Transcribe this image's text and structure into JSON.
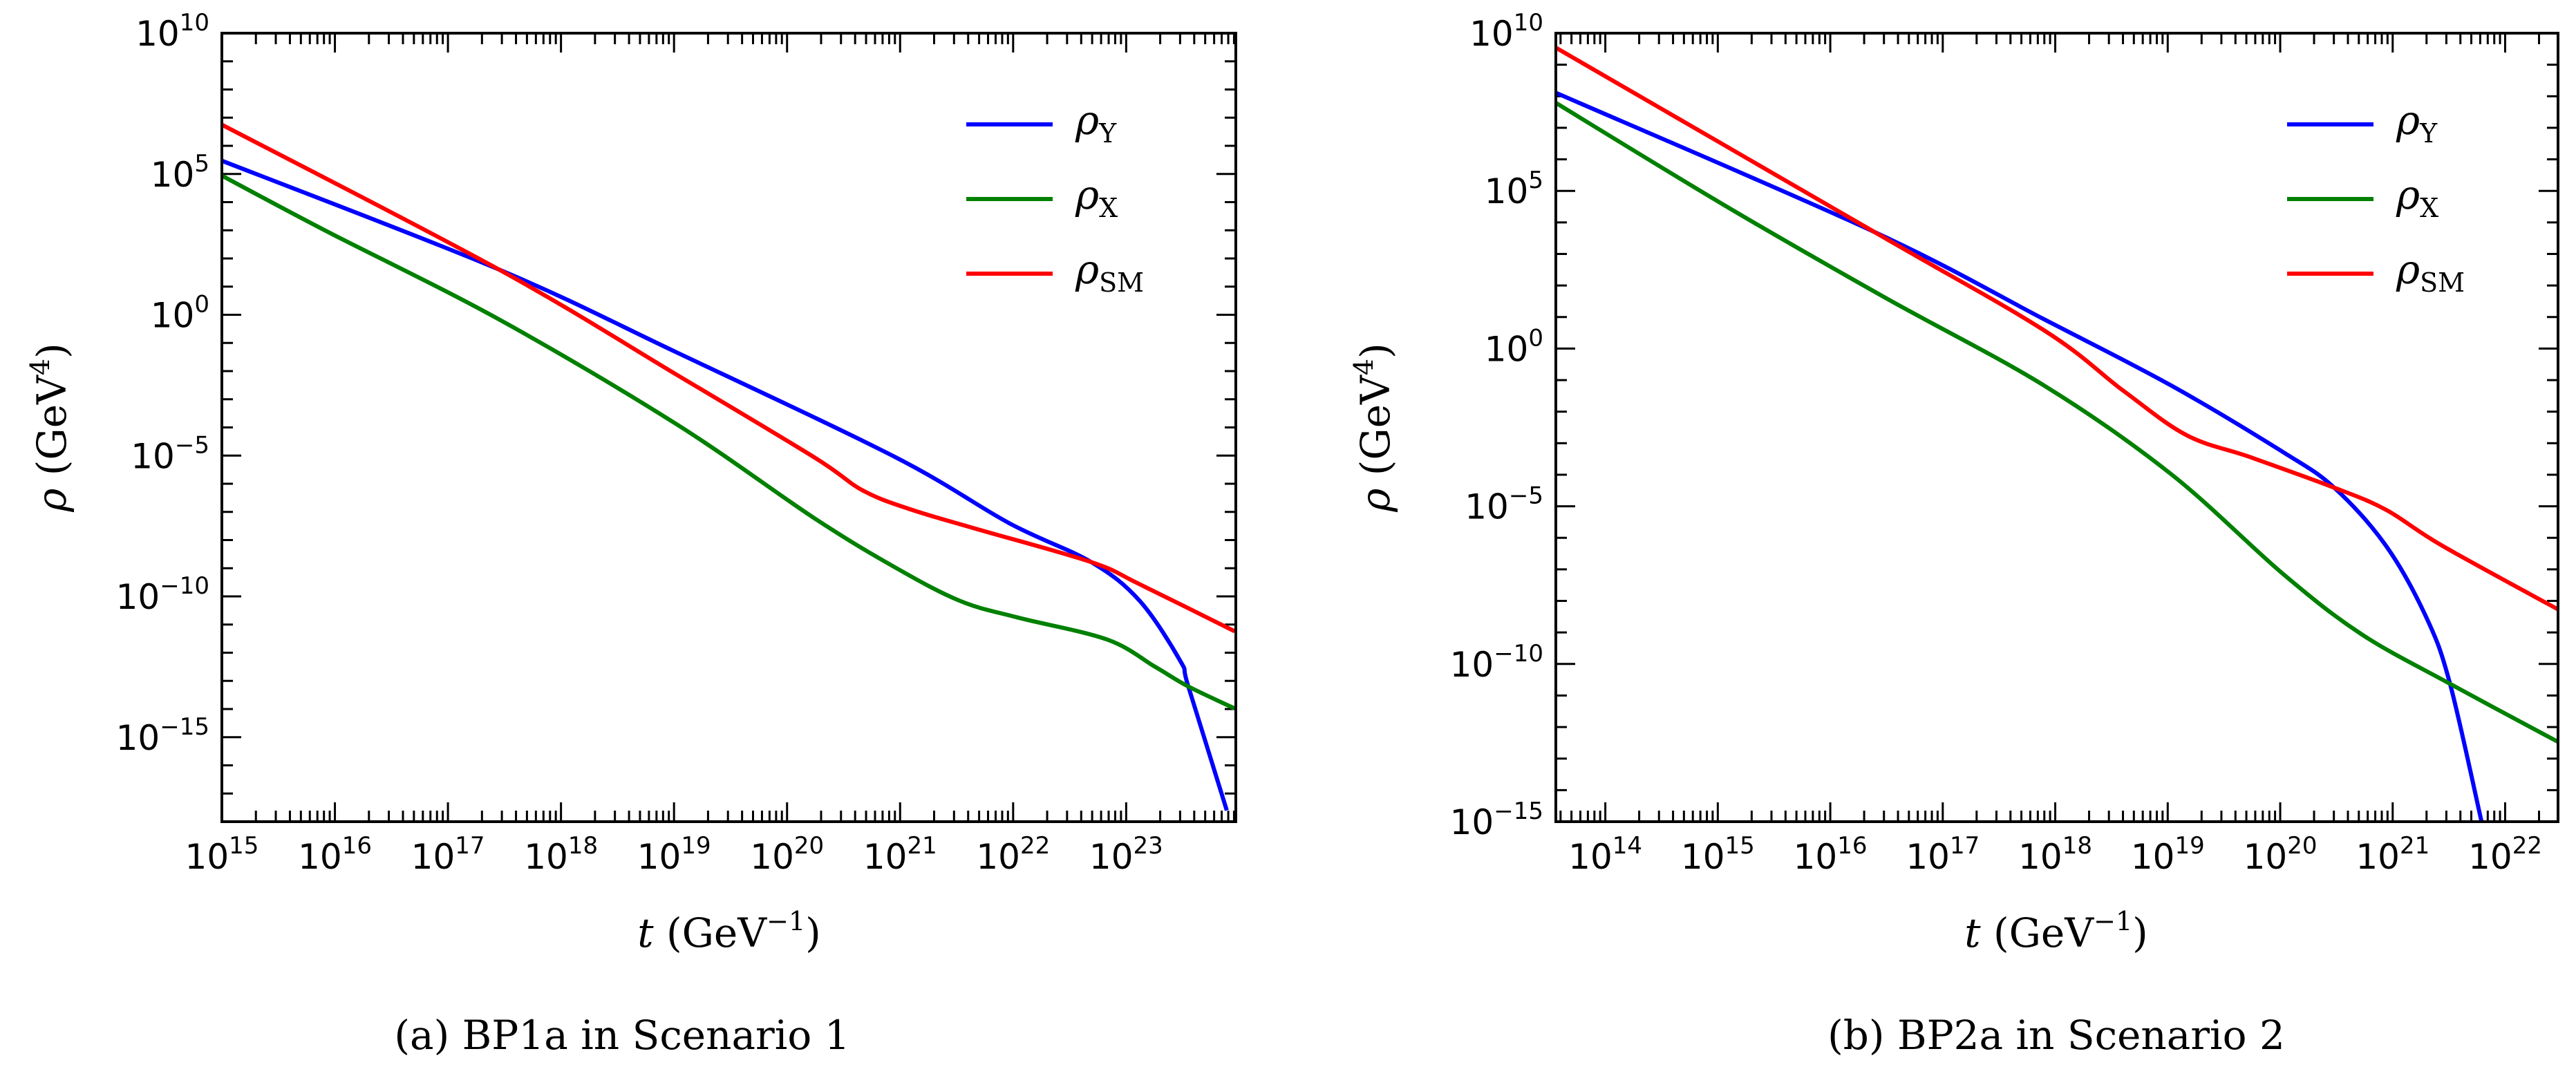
{
  "chart_data": [
    {
      "type": "line",
      "caption": "(a) BP1a in Scenario 1",
      "xlabel": "t (GeV^-1)",
      "xlabel_main": "t",
      "xlabel_unit": "(GeV",
      "xlabel_exp": "−1",
      "ylabel": "ρ (GeV^4)",
      "ylabel_main": "ρ",
      "ylabel_unit": "(GeV",
      "ylabel_exp": "4",
      "xscale": "log",
      "yscale": "log",
      "xlim_log10": [
        15,
        23.97
      ],
      "ylim_log10": [
        -18,
        10
      ],
      "xticks_log10": [
        15,
        16,
        17,
        18,
        19,
        20,
        21,
        22,
        23
      ],
      "yticks_log10": [
        10,
        5,
        0,
        -5,
        -10,
        -15
      ],
      "legend_position": "top-right",
      "series": [
        {
          "name": "ρ_Y",
          "label_main": "ρ",
          "label_sub": "Y",
          "color": "#0000ff",
          "log10_x": [
            15,
            17.45,
            19.02,
            20.96,
            21.97,
            22.69,
            23.12,
            23.48,
            23.55,
            23.89
          ],
          "log10_y": [
            5.47,
            1.61,
            -1.33,
            -5.06,
            -7.41,
            -8.78,
            -10.16,
            -12.3,
            -13.2,
            -17.6
          ]
        },
        {
          "name": "ρ_X",
          "label_main": "ρ",
          "label_sub": "X",
          "color": "#008000",
          "log10_x": [
            15,
            15.92,
            17.45,
            19.02,
            20.24,
            20.96,
            21.53,
            22.04,
            22.83,
            23.26,
            23.55,
            23.96
          ],
          "log10_y": [
            4.94,
            2.98,
            -0.16,
            -3.88,
            -7.22,
            -8.98,
            -10.16,
            -10.75,
            -11.53,
            -12.51,
            -13.2,
            -13.98
          ]
        },
        {
          "name": "ρ_SM",
          "label_main": "ρ",
          "label_sub": "SM",
          "color": "#ff0000",
          "log10_x": [
            15,
            17.45,
            19.02,
            20.24,
            20.67,
            21.1,
            21.68,
            22.69,
            23.12,
            23.96
          ],
          "log10_y": [
            6.75,
            1.61,
            -2.12,
            -5.06,
            -6.24,
            -6.92,
            -7.61,
            -8.78,
            -9.57,
            -11.24
          ]
        }
      ]
    },
    {
      "type": "line",
      "caption": "(b) BP2a in Scenario 2",
      "xlabel": "t (GeV^-1)",
      "xlabel_main": "t",
      "xlabel_unit": "(GeV",
      "xlabel_exp": "−1",
      "ylabel": "ρ (GeV^4)",
      "ylabel_main": "ρ",
      "ylabel_unit": "(GeV",
      "ylabel_exp": "4",
      "xscale": "log",
      "yscale": "log",
      "xlim_log10": [
        13.56,
        22.47
      ],
      "ylim_log10": [
        -15,
        10
      ],
      "xticks_log10": [
        14,
        15,
        16,
        17,
        18,
        19,
        20,
        21,
        22
      ],
      "yticks_log10": [
        10,
        5,
        0,
        -5,
        -10,
        -15
      ],
      "legend_position": "top-right",
      "series": [
        {
          "name": "ρ_Y",
          "label_main": "ρ",
          "label_sub": "Y",
          "color": "#0000ff",
          "log10_x": [
            13.56,
            16.39,
            17.9,
            19.03,
            20.02,
            20.48,
            20.94,
            21.3,
            21.51,
            21.79
          ],
          "log10_y": [
            8.11,
            3.7,
            0.93,
            -1.17,
            -3.27,
            -4.41,
            -6.25,
            -8.53,
            -10.63,
            -15
          ]
        },
        {
          "name": "ρ_X",
          "label_main": "ρ",
          "label_sub": "X",
          "color": "#008000",
          "log10_x": [
            13.56,
            15.07,
            16.48,
            17.9,
            19.03,
            20.02,
            20.72,
            21.51,
            22.47
          ],
          "log10_y": [
            7.79,
            4.52,
            1.63,
            -1.17,
            -3.98,
            -7.13,
            -9.05,
            -10.63,
            -12.47
          ]
        },
        {
          "name": "ρ_SM",
          "label_main": "ρ",
          "label_sub": "SM",
          "color": "#ff0000",
          "log10_x": [
            13.56,
            16.39,
            17.9,
            18.61,
            19.17,
            19.74,
            20.48,
            20.94,
            21.44,
            22.47
          ],
          "log10_y": [
            9.54,
            3.7,
            0.58,
            -1.35,
            -2.75,
            -3.45,
            -4.41,
            -5.11,
            -6.25,
            -8.27
          ]
        }
      ]
    }
  ]
}
